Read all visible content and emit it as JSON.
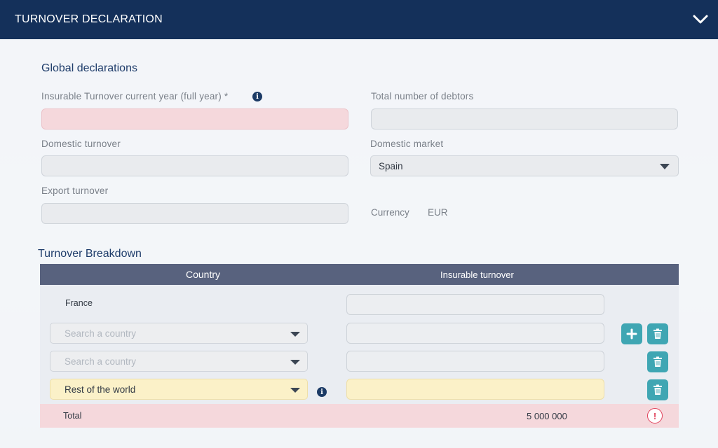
{
  "header": {
    "title": "TURNOVER DECLARATION"
  },
  "global": {
    "title": "Global declarations",
    "insurable_label": "Insurable Turnover current year (full year) *",
    "debtors_label": "Total number of debtors",
    "domestic_turnover_label": "Domestic turnover",
    "domestic_market_label": "Domestic market",
    "domestic_market_value": "Spain",
    "export_turnover_label": "Export turnover",
    "currency_label": "Currency",
    "currency_value": "EUR"
  },
  "breakdown": {
    "title": "Turnover Breakdown",
    "col_country": "Country",
    "col_turnover": "Insurable turnover",
    "rows": [
      {
        "country": "France"
      },
      {
        "placeholder": "Search a country"
      },
      {
        "placeholder": "Search a country"
      },
      {
        "country": "Rest of the world"
      }
    ],
    "total_label": "Total",
    "total_value": "5 000 000"
  },
  "icons": {
    "chevron": "chevron-down-icon",
    "info": "info-icon",
    "add": "plus-icon",
    "delete": "trash-icon",
    "warning": "exclamation-icon"
  },
  "colors": {
    "header": "#14305a",
    "accent": "#3fa6b3",
    "error_bg": "#f5d8dc",
    "highlight_bg": "#fbf1c8"
  }
}
